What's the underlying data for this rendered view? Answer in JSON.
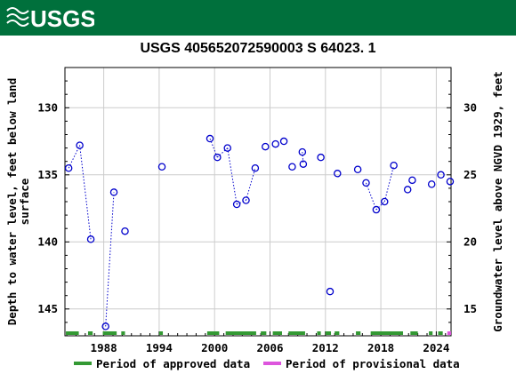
{
  "header": {
    "logo_text": "USGS",
    "brand_color": "#00703c"
  },
  "chart_data": {
    "type": "scatter",
    "title": "USGS 405652072590003 S 64023. 1",
    "ylabel_left": "Depth to water level, feet below land surface",
    "ylabel_right": "Groundwater level above NGVD 1929, feet",
    "x_ticks": [
      "1988",
      "1994",
      "2000",
      "2006",
      "2012",
      "2018",
      "2024"
    ],
    "x_tick_years": [
      1988,
      1994,
      2000,
      2006,
      2012,
      2018,
      2024
    ],
    "xlim": [
      1983.8,
      2025.6
    ],
    "y_left_ticks": [
      "130",
      "135",
      "140",
      "145"
    ],
    "y_left_values": [
      130,
      135,
      140,
      145
    ],
    "y_right_ticks": [
      "30",
      "25",
      "20",
      "15"
    ],
    "y_right_values": [
      30,
      25,
      20,
      15
    ],
    "ylim_left": [
      127.0,
      147.0
    ],
    "right_axis_offset": 160,
    "y_inverted": true,
    "grid": true,
    "marker_color": "#0000cc",
    "series": [
      {
        "points": [
          {
            "x": 1984.2,
            "y": 134.5
          },
          {
            "x": 1985.4,
            "y": 132.8
          },
          {
            "x": 1986.6,
            "y": 139.8
          },
          {
            "x": 1988.2,
            "y": 146.3
          },
          {
            "x": 1989.1,
            "y": 136.3
          },
          {
            "x": 1990.3,
            "y": 139.2
          },
          {
            "x": 1994.3,
            "y": 134.4
          },
          {
            "x": 1999.5,
            "y": 132.3
          },
          {
            "x": 2000.3,
            "y": 133.7
          },
          {
            "x": 2001.4,
            "y": 133.0
          },
          {
            "x": 2002.4,
            "y": 137.2
          },
          {
            "x": 2003.4,
            "y": 136.9
          },
          {
            "x": 2004.4,
            "y": 134.5
          },
          {
            "x": 2005.5,
            "y": 132.9
          },
          {
            "x": 2006.6,
            "y": 132.7
          },
          {
            "x": 2007.5,
            "y": 132.5
          },
          {
            "x": 2008.4,
            "y": 134.4
          },
          {
            "x": 2009.5,
            "y": 133.3
          },
          {
            "x": 2009.6,
            "y": 134.2
          },
          {
            "x": 2011.5,
            "y": 133.7
          },
          {
            "x": 2012.5,
            "y": 143.7
          },
          {
            "x": 2013.3,
            "y": 134.9
          },
          {
            "x": 2015.5,
            "y": 134.6
          },
          {
            "x": 2016.4,
            "y": 135.6
          },
          {
            "x": 2017.5,
            "y": 137.6
          },
          {
            "x": 2018.4,
            "y": 137.0
          },
          {
            "x": 2019.4,
            "y": 134.3
          },
          {
            "x": 2020.9,
            "y": 136.1
          },
          {
            "x": 2021.4,
            "y": 135.4
          },
          {
            "x": 2023.5,
            "y": 135.7
          },
          {
            "x": 2024.5,
            "y": 135.0
          },
          {
            "x": 2025.5,
            "y": 135.5
          }
        ],
        "connected_segments": [
          [
            0,
            1
          ],
          [
            1,
            2
          ],
          [
            3,
            4
          ],
          [
            7,
            8
          ],
          [
            8,
            9
          ],
          [
            9,
            10
          ],
          [
            10,
            11
          ],
          [
            11,
            12
          ],
          [
            17,
            18
          ],
          [
            23,
            24
          ],
          [
            24,
            25
          ],
          [
            25,
            26
          ]
        ]
      }
    ],
    "approved_periods": [
      [
        1983.9,
        1985.3
      ],
      [
        1986.3,
        1986.8
      ],
      [
        1987.9,
        1989.4
      ],
      [
        1989.9,
        1990.3
      ],
      [
        1994.0,
        1994.4
      ],
      [
        1999.2,
        2000.5
      ],
      [
        2001.2,
        2004.5
      ],
      [
        2005.0,
        2005.6
      ],
      [
        2006.3,
        2007.3
      ],
      [
        2008.0,
        2009.8
      ],
      [
        2011.1,
        2011.5
      ],
      [
        2012.0,
        2012.6
      ],
      [
        2013.0,
        2013.5
      ],
      [
        2015.3,
        2015.8
      ],
      [
        2016.9,
        2020.4
      ],
      [
        2021.2,
        2022.0
      ],
      [
        2023.2,
        2023.6
      ],
      [
        2024.2,
        2024.7
      ]
    ],
    "provisional_periods": [
      [
        2025.2,
        2025.6
      ]
    ],
    "approved_color": "#339933",
    "provisional_color": "#dd55dd",
    "legend": {
      "placement": "bottom",
      "approved_label": "Period of approved data",
      "provisional_label": "Period of provisional data"
    }
  }
}
